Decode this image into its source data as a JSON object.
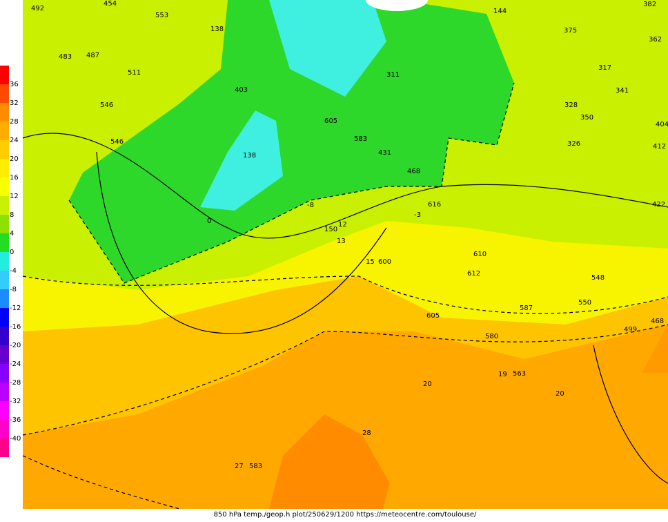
{
  "colorbar": {
    "labels": [
      36,
      32,
      28,
      24,
      20,
      16,
      12,
      8,
      4,
      0,
      -4,
      -8,
      -12,
      -16,
      -20,
      -24,
      -28,
      -32,
      -36,
      -40
    ],
    "colors": [
      "#ff0000",
      "#ff4a00",
      "#ff8c00",
      "#ffad00",
      "#ffcc00",
      "#ffee00",
      "#f8ff00",
      "#c8f000",
      "#8ee000",
      "#22dd22",
      "#22eedd",
      "#33ccff",
      "#1a8cff",
      "#0000ff",
      "#3300cc",
      "#6600cc",
      "#8800ff",
      "#bb00ff",
      "#ff00ff",
      "#ff00cc",
      "#ff0088"
    ]
  },
  "map_labels": [
    "492",
    "454",
    "553",
    "138",
    "487",
    "483",
    "511",
    "403",
    "546",
    "546",
    "138",
    "0",
    "311",
    "605",
    "583",
    "431",
    "468",
    "616",
    "150",
    "12",
    "13",
    "15",
    "600",
    "610",
    "612",
    "605",
    "580",
    "563",
    "20",
    "28",
    "27",
    "583",
    "382",
    "362",
    "375",
    "317",
    "341",
    "350",
    "328",
    "326",
    "404",
    "412",
    "422",
    "548",
    "550",
    "499",
    "468",
    "-8",
    "-3",
    "144",
    "20",
    "587",
    "19"
  ],
  "caption": "850 hPa temp./geop.h plot/250629/1200 https://meteocentre.com/toulouse/"
}
